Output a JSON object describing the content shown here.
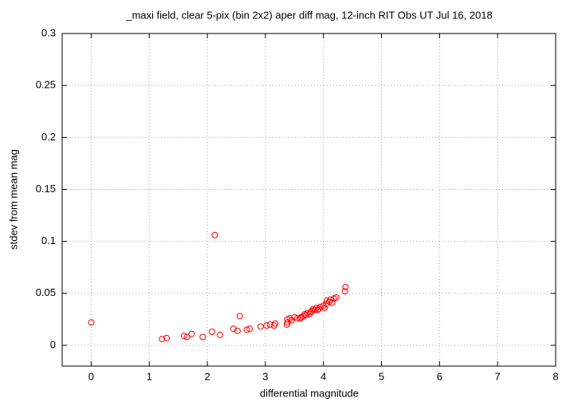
{
  "chart_data": {
    "type": "scatter",
    "title": "_maxi field, clear 5-pix (bin 2x2) aper diff mag,  12-inch RIT Obs UT Jul 16, 2018",
    "xlabel": "differential magnitude",
    "ylabel": "stdev from mean mag",
    "color": "#ff0000",
    "marker": "open-circle",
    "grid": true,
    "xlim": [
      -0.5,
      8
    ],
    "ylim": [
      -0.02,
      0.3
    ],
    "xticks": [
      0,
      1,
      2,
      3,
      4,
      5,
      6,
      7,
      8
    ],
    "yticks": [
      0,
      0.05,
      0.1,
      0.15,
      0.2,
      0.25,
      0.3
    ],
    "x": [
      0,
      1.22,
      1.3,
      1.6,
      1.65,
      1.73,
      1.92,
      2.08,
      2.13,
      2.22,
      2.45,
      2.52,
      2.56,
      2.68,
      2.73,
      2.92,
      3.02,
      3.08,
      3.15,
      3.17,
      3.37,
      3.38,
      3.38,
      3.42,
      3.45,
      3.5,
      3.55,
      3.6,
      3.62,
      3.65,
      3.68,
      3.7,
      3.72,
      3.76,
      3.78,
      3.8,
      3.82,
      3.85,
      3.88,
      3.9,
      3.92,
      3.95,
      4.0,
      4.02,
      4.05,
      4.06,
      4.1,
      4.12,
      4.15,
      4.18,
      4.22,
      4.37,
      4.38
    ],
    "y": [
      0.022,
      0.006,
      0.007,
      0.009,
      0.008,
      0.011,
      0.008,
      0.013,
      0.106,
      0.01,
      0.016,
      0.014,
      0.028,
      0.015,
      0.016,
      0.018,
      0.019,
      0.02,
      0.019,
      0.021,
      0.02,
      0.022,
      0.025,
      0.026,
      0.024,
      0.027,
      0.026,
      0.026,
      0.027,
      0.028,
      0.03,
      0.029,
      0.031,
      0.03,
      0.032,
      0.033,
      0.035,
      0.034,
      0.036,
      0.034,
      0.035,
      0.037,
      0.038,
      0.036,
      0.04,
      0.043,
      0.042,
      0.044,
      0.041,
      0.045,
      0.046,
      0.052,
      0.056
    ]
  }
}
